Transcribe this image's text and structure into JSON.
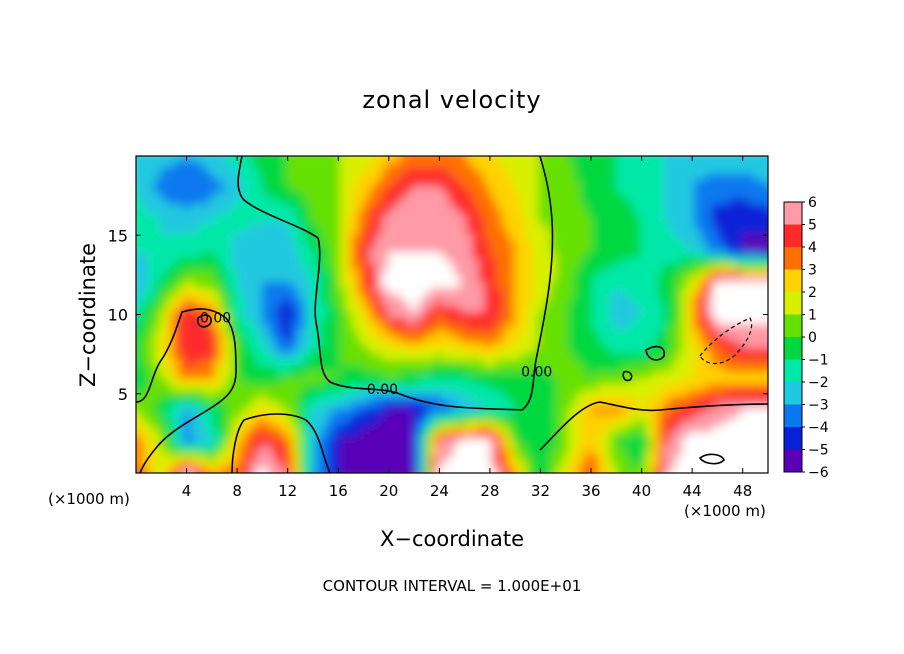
{
  "chart_data": {
    "type": "heatmap",
    "title": "zonal velocity",
    "xlabel": "X−coordinate",
    "ylabel": "Z−coordinate",
    "x_unit_label": "(×1000 m)",
    "y_unit_label": "(×1000 m)",
    "footer": "CONTOUR INTERVAL = 1.000E+01",
    "xlim": [
      0,
      50
    ],
    "ylim": [
      0,
      20
    ],
    "x_ticks": [
      4,
      8,
      12,
      16,
      20,
      24,
      28,
      32,
      36,
      40,
      44,
      48
    ],
    "y_ticks": [
      5,
      10,
      15
    ],
    "colorbar": {
      "ticks": [
        "6",
        "5",
        "4",
        "3",
        "2",
        "1",
        "0",
        "−1",
        "−2",
        "−3",
        "−4",
        "−5",
        "−6"
      ],
      "colors": [
        "#ff9aa6",
        "#ff2a2a",
        "#ff7000",
        "#ffd200",
        "#d8f000",
        "#66e000",
        "#00d840",
        "#00e8a8",
        "#20c8e0",
        "#0a78f0",
        "#0a20d8",
        "#5a00b8"
      ]
    },
    "contour_labels": [
      {
        "text": "0.00",
        "x": 19.5,
        "y": 5.0
      },
      {
        "text": "0.00",
        "x": 31.7,
        "y": 6.1
      },
      {
        "text": "0.00",
        "x": 6.3,
        "y": 9.5
      }
    ],
    "field": {
      "nx": 26,
      "ny": 11,
      "cols_note": "x from 0 to 50 every 2 (x1000 m); rows z from 20 down to 0 every 2",
      "values": [
        [
          -2.0,
          -2.5,
          -3.0,
          -2.5,
          -1.5,
          -0.5,
          0.0,
          0.5,
          1.0,
          1.5,
          2.5,
          3.5,
          3.5,
          3.0,
          2.0,
          1.5,
          1.0,
          0.0,
          -0.5,
          -1.0,
          -1.5,
          -2.0,
          -2.5,
          -2.5,
          -2.5,
          -2.5
        ],
        [
          -2.0,
          -3.5,
          -4.0,
          -3.5,
          -2.5,
          -1.0,
          0.0,
          0.5,
          1.0,
          2.5,
          4.0,
          5.0,
          5.0,
          4.0,
          3.0,
          2.0,
          1.0,
          0.5,
          -0.5,
          -1.0,
          -1.5,
          -2.0,
          -3.0,
          -3.5,
          -3.5,
          -3.0
        ],
        [
          -1.5,
          -2.0,
          -2.5,
          -2.0,
          -1.5,
          -2.0,
          -2.0,
          0.0,
          1.0,
          3.5,
          5.5,
          6.0,
          6.0,
          5.0,
          3.5,
          2.5,
          1.0,
          0.5,
          0.0,
          -0.5,
          -1.0,
          -2.0,
          -3.0,
          -4.5,
          -5.0,
          -4.5
        ],
        [
          -2.0,
          -2.0,
          -1.5,
          -1.0,
          -2.5,
          -3.0,
          -2.5,
          -1.0,
          1.0,
          4.5,
          6.0,
          6.0,
          6.0,
          5.5,
          4.0,
          3.0,
          1.5,
          0.5,
          0.0,
          -0.5,
          -1.0,
          -1.5,
          -2.0,
          -3.5,
          -5.0,
          -5.5
        ],
        [
          -3.0,
          -1.0,
          1.0,
          0.5,
          -2.0,
          -3.0,
          -3.0,
          -2.0,
          0.5,
          4.0,
          6.5,
          6.5,
          6.5,
          6.0,
          4.5,
          3.0,
          1.5,
          0.5,
          -1.0,
          -2.0,
          -1.5,
          -0.5,
          1.5,
          6.5,
          6.5,
          6.5
        ],
        [
          -1.5,
          1.0,
          5.0,
          3.5,
          -1.5,
          -3.0,
          -5.0,
          -2.0,
          0.0,
          2.0,
          5.0,
          6.0,
          4.0,
          5.0,
          5.0,
          3.0,
          1.0,
          0.0,
          -1.0,
          -2.5,
          -2.0,
          -1.0,
          3.0,
          6.5,
          6.5,
          6.5
        ],
        [
          -0.5,
          2.0,
          5.0,
          4.5,
          0.0,
          -2.0,
          -4.0,
          -1.5,
          0.0,
          1.0,
          2.0,
          2.5,
          2.0,
          2.5,
          3.0,
          2.0,
          1.0,
          0.0,
          -0.5,
          -1.5,
          -1.5,
          -0.5,
          2.0,
          4.0,
          5.0,
          5.0
        ],
        [
          -1.0,
          1.0,
          3.5,
          3.0,
          0.0,
          -0.5,
          0.0,
          0.5,
          0.0,
          -0.5,
          0.0,
          -0.5,
          -1.0,
          -1.0,
          -0.5,
          -0.5,
          -0.5,
          0.5,
          0.0,
          0.5,
          1.0,
          1.5,
          2.0,
          2.5,
          2.5,
          2.5
        ],
        [
          1.0,
          -0.5,
          -3.0,
          -1.0,
          0.5,
          2.0,
          1.0,
          -2.0,
          -3.0,
          -4.0,
          -5.0,
          -5.0,
          -4.0,
          -3.0,
          -2.0,
          -1.0,
          -0.5,
          0.5,
          3.0,
          3.5,
          2.0,
          3.5,
          4.5,
          5.5,
          6.0,
          6.0
        ],
        [
          3.5,
          1.0,
          -3.5,
          -2.0,
          2.5,
          5.0,
          3.5,
          -2.5,
          -5.0,
          -5.5,
          -6.0,
          -5.0,
          5.0,
          6.5,
          6.5,
          0.0,
          -1.0,
          0.5,
          3.0,
          0.0,
          -1.0,
          5.0,
          6.5,
          6.5,
          6.5,
          6.5
        ],
        [
          4.0,
          1.5,
          6.5,
          3.0,
          3.5,
          6.5,
          5.0,
          -3.0,
          -5.0,
          -6.0,
          -6.5,
          -5.5,
          6.5,
          6.5,
          6.5,
          3.0,
          -1.0,
          2.0,
          4.0,
          1.0,
          0.0,
          6.0,
          6.5,
          6.5,
          6.5,
          6.5
        ]
      ]
    }
  }
}
